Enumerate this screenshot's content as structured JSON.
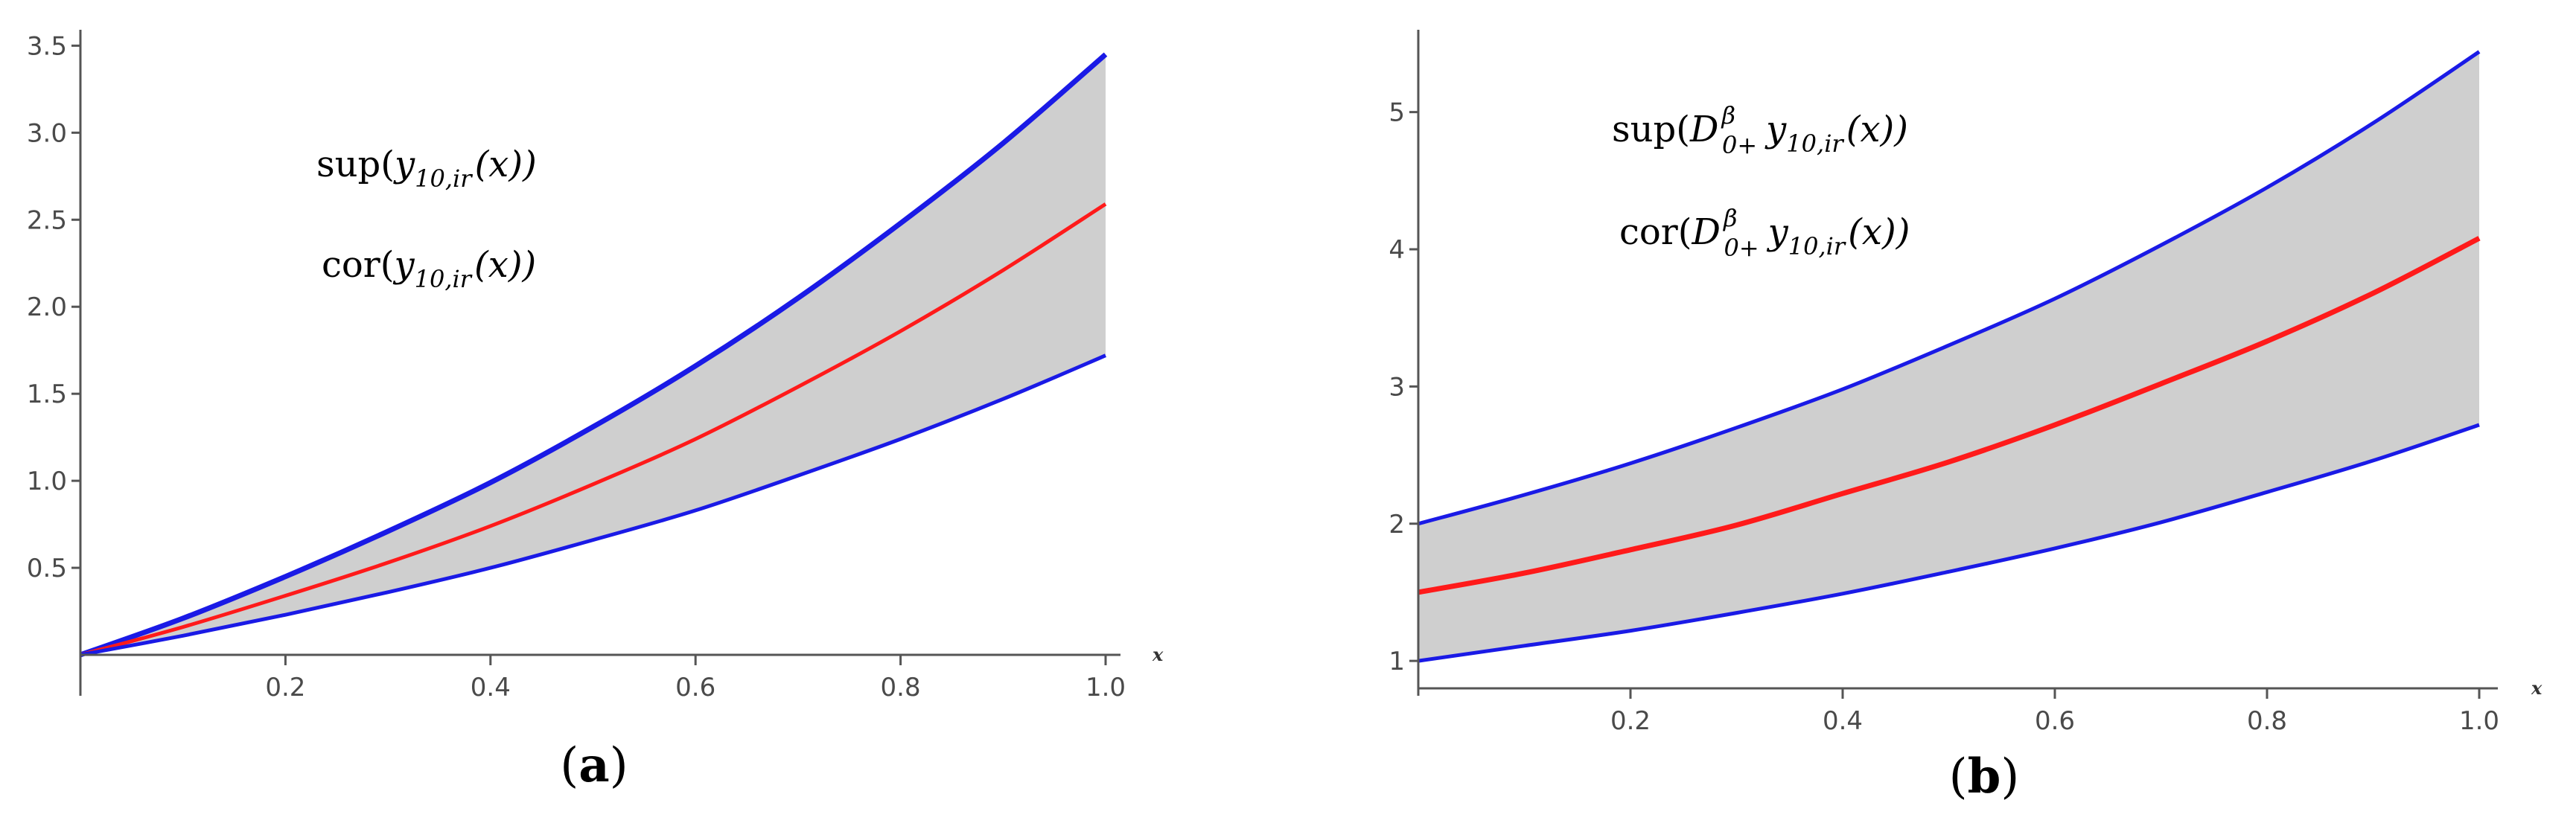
{
  "chart_data": [
    {
      "type": "line",
      "panel_label": "a",
      "x": [
        0.0,
        0.1,
        0.2,
        0.3,
        0.4,
        0.5,
        0.6,
        0.7,
        0.8,
        0.9,
        1.0
      ],
      "series": [
        {
          "values": [
            0.0,
            0.21,
            0.45,
            0.71,
            0.99,
            1.31,
            1.66,
            2.05,
            2.48,
            2.94,
            3.45
          ],
          "color": "#1a1ae6"
        },
        {
          "values": [
            0.0,
            0.16,
            0.34,
            0.53,
            0.74,
            0.98,
            1.24,
            1.54,
            1.86,
            2.21,
            2.59
          ],
          "color": "#ff1a1a"
        },
        {
          "values": [
            0.0,
            0.11,
            0.23,
            0.36,
            0.5,
            0.66,
            0.83,
            1.03,
            1.24,
            1.47,
            1.72
          ],
          "color": "#1a1ae6"
        }
      ],
      "fill_between": {
        "color": "#cfcfcf"
      },
      "xlim": [
        0.0,
        1.0
      ],
      "ylim": [
        0.0,
        3.6
      ],
      "xticks": [
        "0.2",
        "0.4",
        "0.6",
        "0.8",
        "1.0"
      ],
      "yticks": [
        "0.5",
        "1.0",
        "1.5",
        "2.0",
        "2.5",
        "3.0",
        "3.5"
      ],
      "xlabel": "x",
      "ylabel": "",
      "grid": false,
      "annotations": [
        {
          "func": "sup",
          "open": "(",
          "var": "y",
          "sub": "10,ir",
          "arg": "(x))"
        },
        {
          "func": "cor",
          "open": "(",
          "var": "y",
          "sub": "10,ir",
          "arg": "(x))"
        }
      ],
      "caption": {
        "open": "(",
        "letter": "a",
        "close": ")"
      }
    },
    {
      "type": "line",
      "panel_label": "b",
      "x": [
        0.0,
        0.1,
        0.2,
        0.3,
        0.4,
        0.5,
        0.6,
        0.7,
        0.8,
        0.9,
        1.0
      ],
      "series": [
        {
          "values": [
            2.0,
            2.21,
            2.44,
            2.7,
            2.98,
            3.3,
            3.64,
            4.03,
            4.45,
            4.92,
            5.44
          ],
          "color": "#1a1ae6"
        },
        {
          "values": [
            1.5,
            1.64,
            1.81,
            1.99,
            2.22,
            2.45,
            2.72,
            3.02,
            3.33,
            3.68,
            4.08
          ],
          "color": "#ff1a1a"
        },
        {
          "values": [
            1.0,
            1.11,
            1.22,
            1.35,
            1.49,
            1.65,
            1.82,
            2.01,
            2.23,
            2.46,
            2.72
          ],
          "color": "#1a1ae6"
        }
      ],
      "fill_between": {
        "color": "#cfcfcf"
      },
      "xlim": [
        0.0,
        1.0
      ],
      "ylim": [
        0.8,
        5.6
      ],
      "xticks": [
        "0.2",
        "0.4",
        "0.6",
        "0.8",
        "1.0"
      ],
      "yticks": [
        "1",
        "2",
        "3",
        "4",
        "5"
      ],
      "xlabel": "x",
      "ylabel": "",
      "grid": false,
      "annotations": [
        {
          "func": "sup",
          "open": "(",
          "op": "D",
          "op_sup": "β",
          "op_sub": "0+",
          "var": "y",
          "sub": "10,ir",
          "arg": "(x))"
        },
        {
          "func": "cor",
          "open": "(",
          "op": "D",
          "op_sup": "β",
          "op_sub": "0+",
          "var": "y",
          "sub": "10,ir",
          "arg": "(x))"
        }
      ],
      "caption": {
        "open": "(",
        "letter": "b",
        "close": ")"
      }
    }
  ]
}
